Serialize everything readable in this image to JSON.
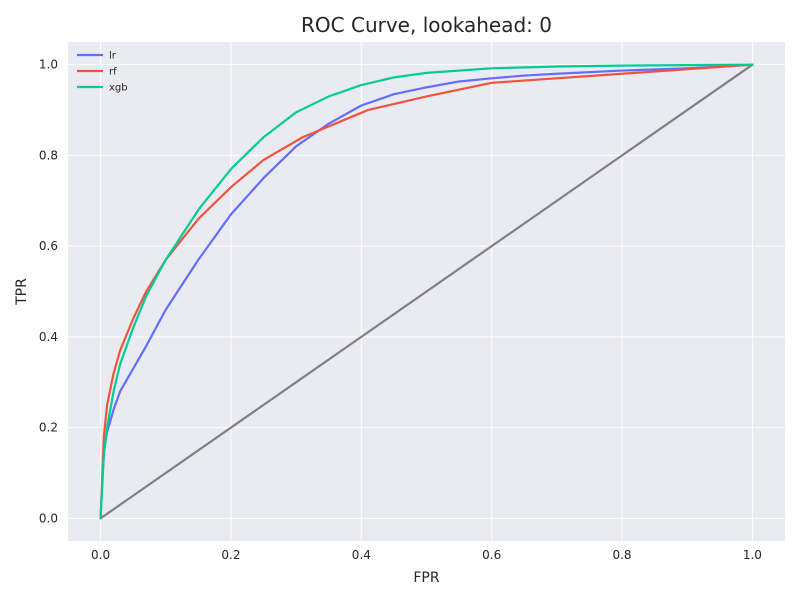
{
  "chart_data": {
    "type": "line",
    "title": "ROC Curve, lookahead: 0",
    "xlabel": "FPR",
    "ylabel": "TPR",
    "xlim": [
      -0.05,
      1.05
    ],
    "ylim": [
      -0.05,
      1.05
    ],
    "xticks": [
      "0.0",
      "0.2",
      "0.4",
      "0.6",
      "0.8",
      "1.0"
    ],
    "yticks": [
      "0.0",
      "0.2",
      "0.4",
      "0.6",
      "0.8",
      "1.0"
    ],
    "grid": true,
    "legend_position": "top-left",
    "background_color": "#eaeaf2",
    "series": [
      {
        "name": "lr",
        "color": "#636efa",
        "x": [
          0,
          0.005,
          0.01,
          0.02,
          0.03,
          0.05,
          0.07,
          0.1,
          0.15,
          0.2,
          0.25,
          0.3,
          0.35,
          0.4,
          0.45,
          0.5,
          0.55,
          0.6,
          0.65,
          0.7,
          0.8,
          0.9,
          1.0
        ],
        "y": [
          0,
          0.15,
          0.19,
          0.24,
          0.28,
          0.33,
          0.38,
          0.46,
          0.57,
          0.67,
          0.75,
          0.82,
          0.87,
          0.91,
          0.935,
          0.95,
          0.963,
          0.97,
          0.976,
          0.98,
          0.987,
          0.992,
          1.0
        ]
      },
      {
        "name": "rf",
        "color": "#ef553b",
        "x": [
          0,
          0.005,
          0.01,
          0.02,
          0.03,
          0.05,
          0.07,
          0.1,
          0.15,
          0.2,
          0.25,
          0.31,
          0.41,
          0.5,
          0.6,
          0.8,
          1.0
        ],
        "y": [
          0,
          0.18,
          0.25,
          0.32,
          0.37,
          0.44,
          0.5,
          0.57,
          0.66,
          0.73,
          0.79,
          0.84,
          0.9,
          0.93,
          0.96,
          0.98,
          1.0
        ]
      },
      {
        "name": "xgb",
        "color": "#00cc96",
        "x": [
          0,
          0.005,
          0.01,
          0.02,
          0.03,
          0.05,
          0.07,
          0.1,
          0.15,
          0.2,
          0.25,
          0.3,
          0.35,
          0.4,
          0.45,
          0.5,
          0.6,
          0.7,
          0.8,
          0.9,
          1.0
        ],
        "y": [
          0,
          0.14,
          0.2,
          0.28,
          0.34,
          0.42,
          0.49,
          0.57,
          0.68,
          0.77,
          0.84,
          0.895,
          0.93,
          0.955,
          0.972,
          0.982,
          0.992,
          0.996,
          0.998,
          0.999,
          1.0
        ]
      },
      {
        "name": "",
        "color": "#808080",
        "x": [
          0,
          1
        ],
        "y": [
          0,
          1
        ]
      }
    ]
  }
}
